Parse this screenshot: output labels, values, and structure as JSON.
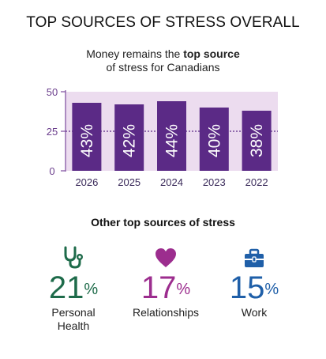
{
  "header": {
    "title": "TOP SOURCES OF STRESS OVERALL",
    "subtitle_line1_pre": "Money remains the ",
    "subtitle_line1_bold": "top source",
    "subtitle_line2": "of stress for Canadians"
  },
  "chart_data": {
    "type": "bar",
    "categories": [
      "2026",
      "2025",
      "2024",
      "2023",
      "2022"
    ],
    "values": [
      43,
      42,
      44,
      40,
      38
    ],
    "value_labels": [
      "43%",
      "42%",
      "44%",
      "40%",
      "38%"
    ],
    "ylim": [
      0,
      50
    ],
    "yticks": [
      "0",
      "25",
      "50"
    ],
    "dashed_reference_at": 25,
    "colors": {
      "bar": "#5b2a86",
      "plot_background": "#ecdcef",
      "axis": "#7b4a9c",
      "tick_text": "#6a3d8c",
      "category_text": "#3a2a5a"
    }
  },
  "other": {
    "title": "Other top sources of stress",
    "items": [
      {
        "value": "21",
        "unit": "%",
        "label_lines": [
          "Personal",
          "Health"
        ],
        "color": "#1e6b4a",
        "icon": "stethoscope-icon"
      },
      {
        "value": "17",
        "unit": "%",
        "label_lines": [
          "Relationships"
        ],
        "color": "#9c2d8e",
        "icon": "heart-icon"
      },
      {
        "value": "15",
        "unit": "%",
        "label_lines": [
          "Work"
        ],
        "color": "#1f5fa8",
        "icon": "briefcase-icon"
      }
    ]
  }
}
